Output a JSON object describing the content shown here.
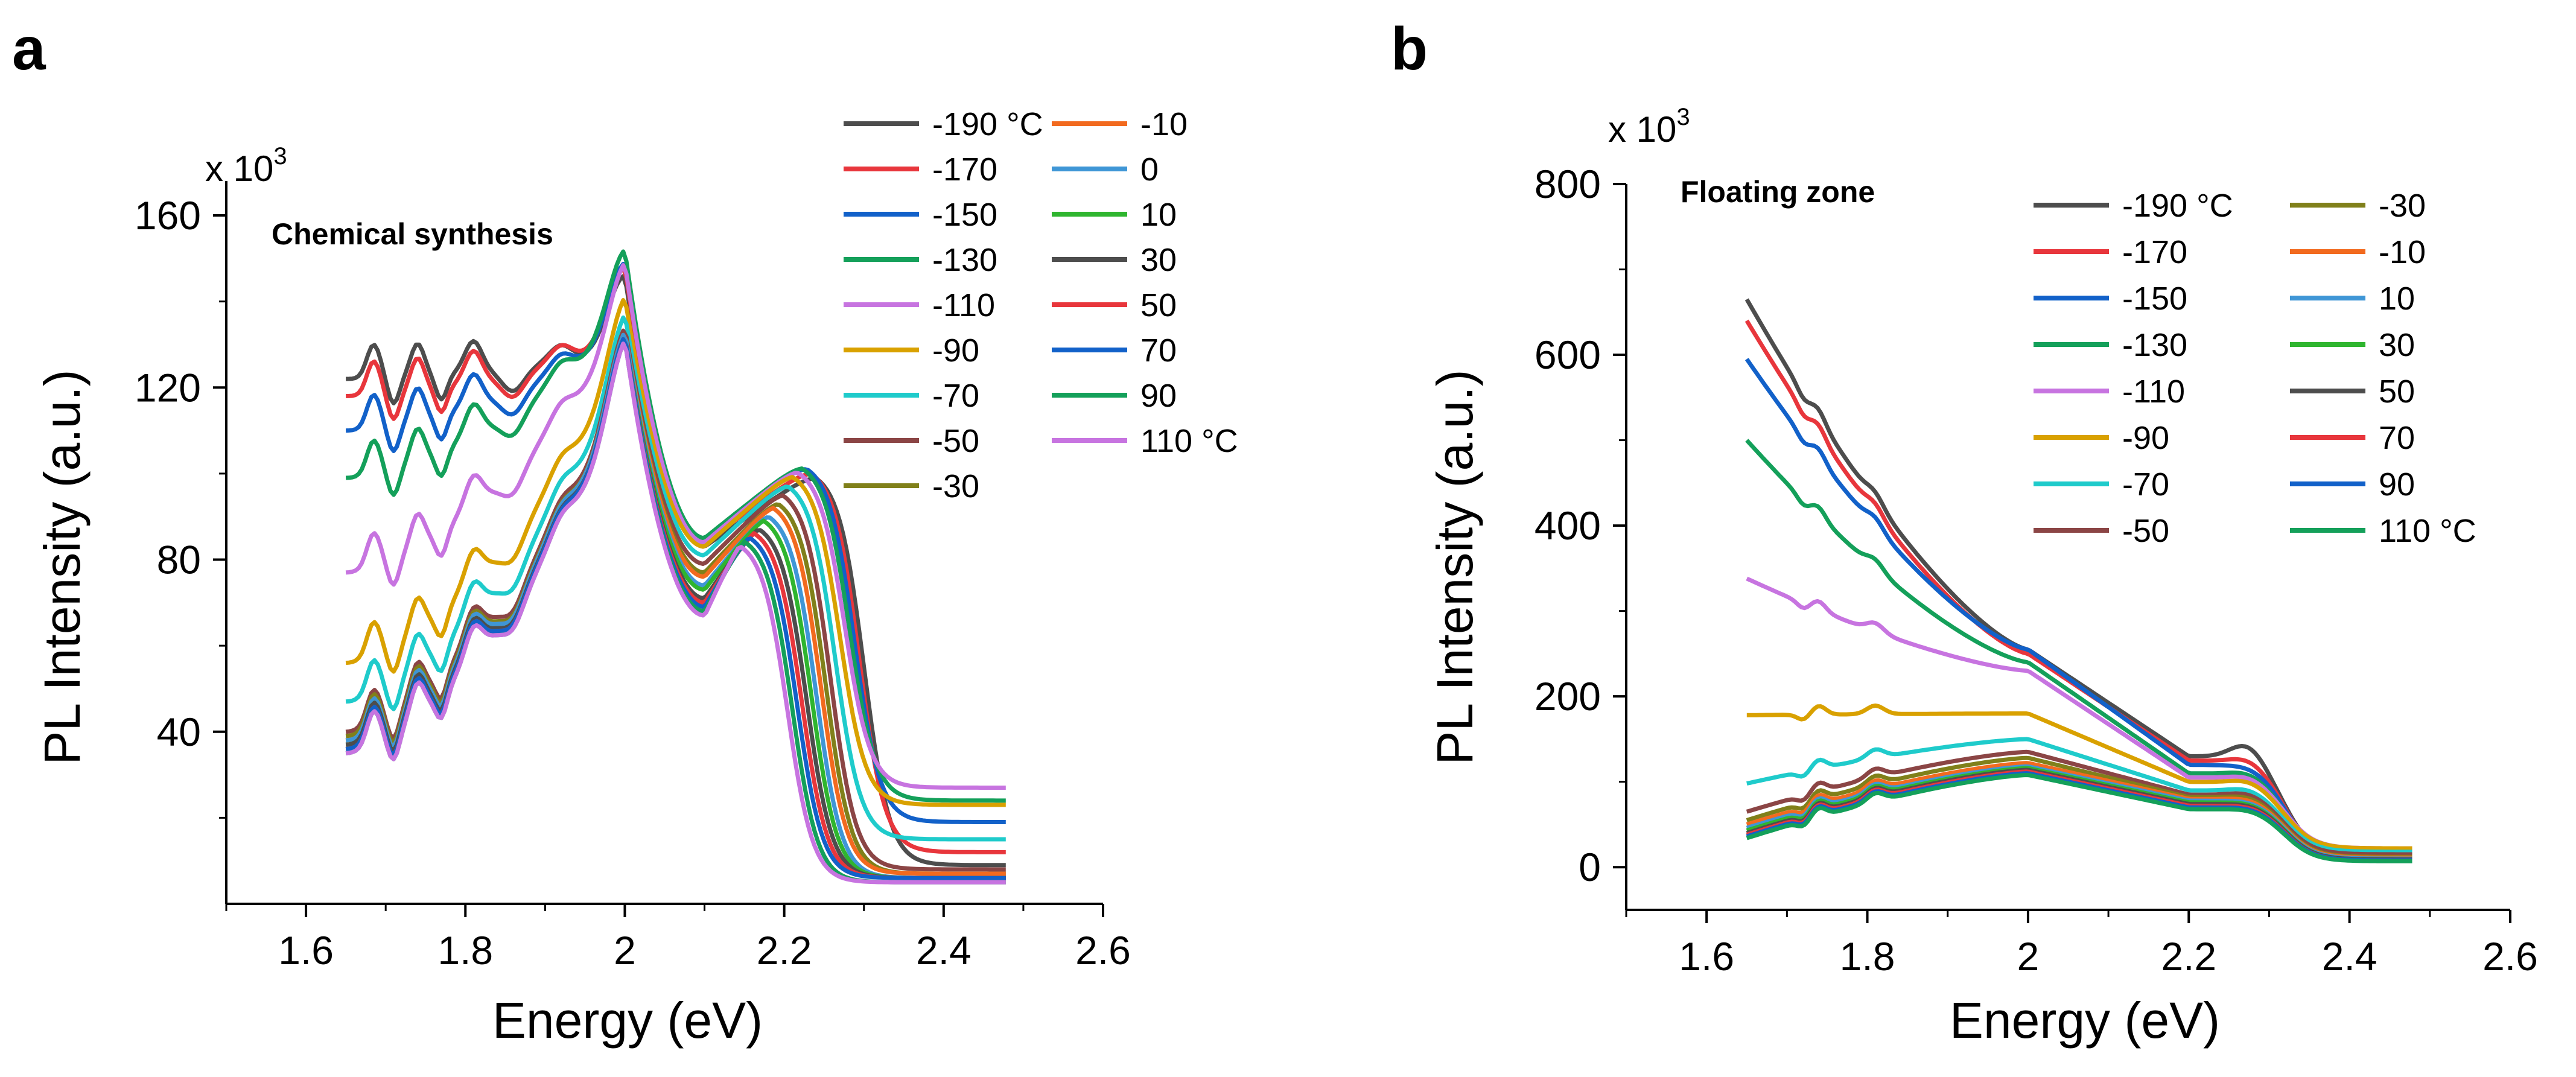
{
  "figure": {
    "panel_a": {
      "letter": "a",
      "annotation": "Chemical synthesis",
      "multiplier": "x 10",
      "multiplier_exp": "3",
      "ylabel": "PL Intensity (a.u.)",
      "xlabel": "Energy (eV)"
    },
    "panel_b": {
      "letter": "b",
      "annotation": "Floating zone",
      "multiplier": "x 10",
      "multiplier_exp": "3",
      "ylabel": "PL Intensity (a.u.)",
      "xlabel": "Energy (eV)"
    }
  },
  "chart_data": [
    {
      "id": "panel_a",
      "type": "line",
      "title": "Chemical synthesis",
      "xlabel": "Energy (eV)",
      "ylabel": "PL Intensity (a.u.)",
      "y_multiplier": "x 10^3",
      "xlim": [
        1.5,
        2.6
      ],
      "ylim": [
        0,
        168
      ],
      "xticks": [
        1.6,
        1.8,
        2.0,
        2.2,
        2.4,
        2.6
      ],
      "xtick_labels": [
        "1.6",
        "1.8",
        "2",
        "2.2",
        "2.4",
        "2.6"
      ],
      "yticks": [
        40,
        80,
        120,
        160
      ],
      "ytick_labels": [
        "40",
        "80",
        "120",
        "160"
      ],
      "legend_columns": [
        [
          "-190 °C",
          "-170",
          "-150",
          "-130",
          "-110",
          "-90",
          "-70",
          "-50",
          "-30"
        ],
        [
          "-10",
          "0",
          "10",
          "30",
          "50",
          "70",
          "90",
          "110 °C"
        ]
      ],
      "series": [
        {
          "name": "-190",
          "color": "#4d4d4d",
          "start": 122,
          "fall": 2.3,
          "tail": 9,
          "peak": 146,
          "hump": 101
        },
        {
          "name": "-170",
          "color": "#e8363c",
          "start": 118,
          "fall": 2.294,
          "tail": 12,
          "peak": 148,
          "hump": 102
        },
        {
          "name": "-150",
          "color": "#1261c9",
          "start": 110,
          "fall": 2.288,
          "tail": 19,
          "peak": 149,
          "hump": 103
        },
        {
          "name": "-130",
          "color": "#14a05a",
          "start": 99,
          "fall": 2.282,
          "tail": 24,
          "peak": 152,
          "hump": 103
        },
        {
          "name": "-110",
          "color": "#c774e0",
          "start": 77,
          "fall": 2.276,
          "tail": 27,
          "peak": 149,
          "hump": 102
        },
        {
          "name": "-90",
          "color": "#d9a100",
          "start": 56,
          "fall": 2.27,
          "tail": 23,
          "peak": 141,
          "hump": 101
        },
        {
          "name": "-70",
          "color": "#1fcbcb",
          "start": 47,
          "fall": 2.264,
          "tail": 15,
          "peak": 137,
          "hump": 99
        },
        {
          "name": "-50",
          "color": "#8b4545",
          "start": 40,
          "fall": 2.258,
          "tail": 8,
          "peak": 134,
          "hump": 97
        },
        {
          "name": "-30",
          "color": "#80801a",
          "start": 39,
          "fall": 2.252,
          "tail": 7,
          "peak": 133,
          "hump": 95
        },
        {
          "name": "-10",
          "color": "#f26a1f",
          "start": 38,
          "fall": 2.246,
          "tail": 7,
          "peak": 133,
          "hump": 94
        },
        {
          "name": "0",
          "color": "#3f96d6",
          "start": 38,
          "fall": 2.24,
          "tail": 6,
          "peak": 133,
          "hump": 92
        },
        {
          "name": "10",
          "color": "#2fb52f",
          "start": 37,
          "fall": 2.234,
          "tail": 6,
          "peak": 132,
          "hump": 91
        },
        {
          "name": "30",
          "color": "#4d4d4d",
          "start": 37,
          "fall": 2.228,
          "tail": 6,
          "peak": 132,
          "hump": 89
        },
        {
          "name": "50",
          "color": "#e8363c",
          "start": 36,
          "fall": 2.222,
          "tail": 6,
          "peak": 132,
          "hump": 88
        },
        {
          "name": "70",
          "color": "#1261c9",
          "start": 36,
          "fall": 2.216,
          "tail": 6,
          "peak": 132,
          "hump": 87
        },
        {
          "name": "90",
          "color": "#14a05a",
          "start": 35,
          "fall": 2.21,
          "tail": 5,
          "peak": 131,
          "hump": 86
        },
        {
          "name": "110",
          "color": "#c774e0",
          "start": 35,
          "fall": 2.204,
          "tail": 5,
          "peak": 131,
          "hump": 85
        }
      ]
    },
    {
      "id": "panel_b",
      "type": "line",
      "title": "Floating zone",
      "xlabel": "Energy (eV)",
      "ylabel": "PL Intensity (a.u.)",
      "y_multiplier": "x 10^3",
      "xlim": [
        1.5,
        2.6
      ],
      "ylim": [
        -50,
        800
      ],
      "xticks": [
        1.6,
        1.8,
        2.0,
        2.2,
        2.4,
        2.6
      ],
      "xtick_labels": [
        "1.6",
        "1.8",
        "2",
        "2.2",
        "2.4",
        "2.6"
      ],
      "yticks": [
        0,
        200,
        400,
        600,
        800
      ],
      "ytick_labels": [
        "0",
        "200",
        "400",
        "600",
        "800"
      ],
      "legend_columns": [
        [
          "-190 °C",
          "-170",
          "-150",
          "-130",
          "-110",
          "-90",
          "-70",
          "-50"
        ],
        [
          "-30",
          "-10",
          "10",
          "30",
          "50",
          "70",
          "90",
          "110 °C"
        ]
      ],
      "series": [
        {
          "name": "-190",
          "color": "#4d4d4d",
          "start": 665,
          "at2": 255,
          "shelf": 130,
          "bump": 150,
          "tail": 12
        },
        {
          "name": "-170",
          "color": "#e8363c",
          "start": 640,
          "at2": 250,
          "shelf": 125,
          "bump": 132,
          "tail": 12
        },
        {
          "name": "-150",
          "color": "#1261c9",
          "start": 595,
          "at2": 255,
          "shelf": 120,
          "bump": 122,
          "tail": 14
        },
        {
          "name": "-130",
          "color": "#14a05a",
          "start": 500,
          "at2": 240,
          "shelf": 110,
          "bump": 115,
          "tail": 16
        },
        {
          "name": "-110",
          "color": "#c774e0",
          "start": 338,
          "at2": 230,
          "shelf": 105,
          "bump": 110,
          "tail": 22
        },
        {
          "name": "-90",
          "color": "#d9a100",
          "start": 178,
          "at2": 180,
          "shelf": 100,
          "bump": 105,
          "tail": 22
        },
        {
          "name": "-70",
          "color": "#1fcbcb",
          "start": 98,
          "at2": 150,
          "shelf": 90,
          "bump": 95,
          "tail": 18
        },
        {
          "name": "-50",
          "color": "#8b4545",
          "start": 65,
          "at2": 135,
          "shelf": 85,
          "bump": 90,
          "tail": 15
        },
        {
          "name": "-30",
          "color": "#80801a",
          "start": 55,
          "at2": 128,
          "shelf": 82,
          "bump": 86,
          "tail": 12
        },
        {
          "name": "-10",
          "color": "#f26a1f",
          "start": 50,
          "at2": 122,
          "shelf": 80,
          "bump": 83,
          "tail": 11
        },
        {
          "name": "10",
          "color": "#3f96d6",
          "start": 46,
          "at2": 118,
          "shelf": 78,
          "bump": 80,
          "tail": 10
        },
        {
          "name": "30",
          "color": "#2fb52f",
          "start": 43,
          "at2": 116,
          "shelf": 76,
          "bump": 78,
          "tail": 9
        },
        {
          "name": "50",
          "color": "#4d4d4d",
          "start": 40,
          "at2": 114,
          "shelf": 74,
          "bump": 76,
          "tail": 9
        },
        {
          "name": "70",
          "color": "#e8363c",
          "start": 38,
          "at2": 112,
          "shelf": 72,
          "bump": 74,
          "tail": 8
        },
        {
          "name": "90",
          "color": "#1261c9",
          "start": 36,
          "at2": 110,
          "shelf": 70,
          "bump": 72,
          "tail": 8
        },
        {
          "name": "110",
          "color": "#14a05a",
          "start": 34,
          "at2": 108,
          "shelf": 68,
          "bump": 70,
          "tail": 7
        }
      ]
    }
  ]
}
